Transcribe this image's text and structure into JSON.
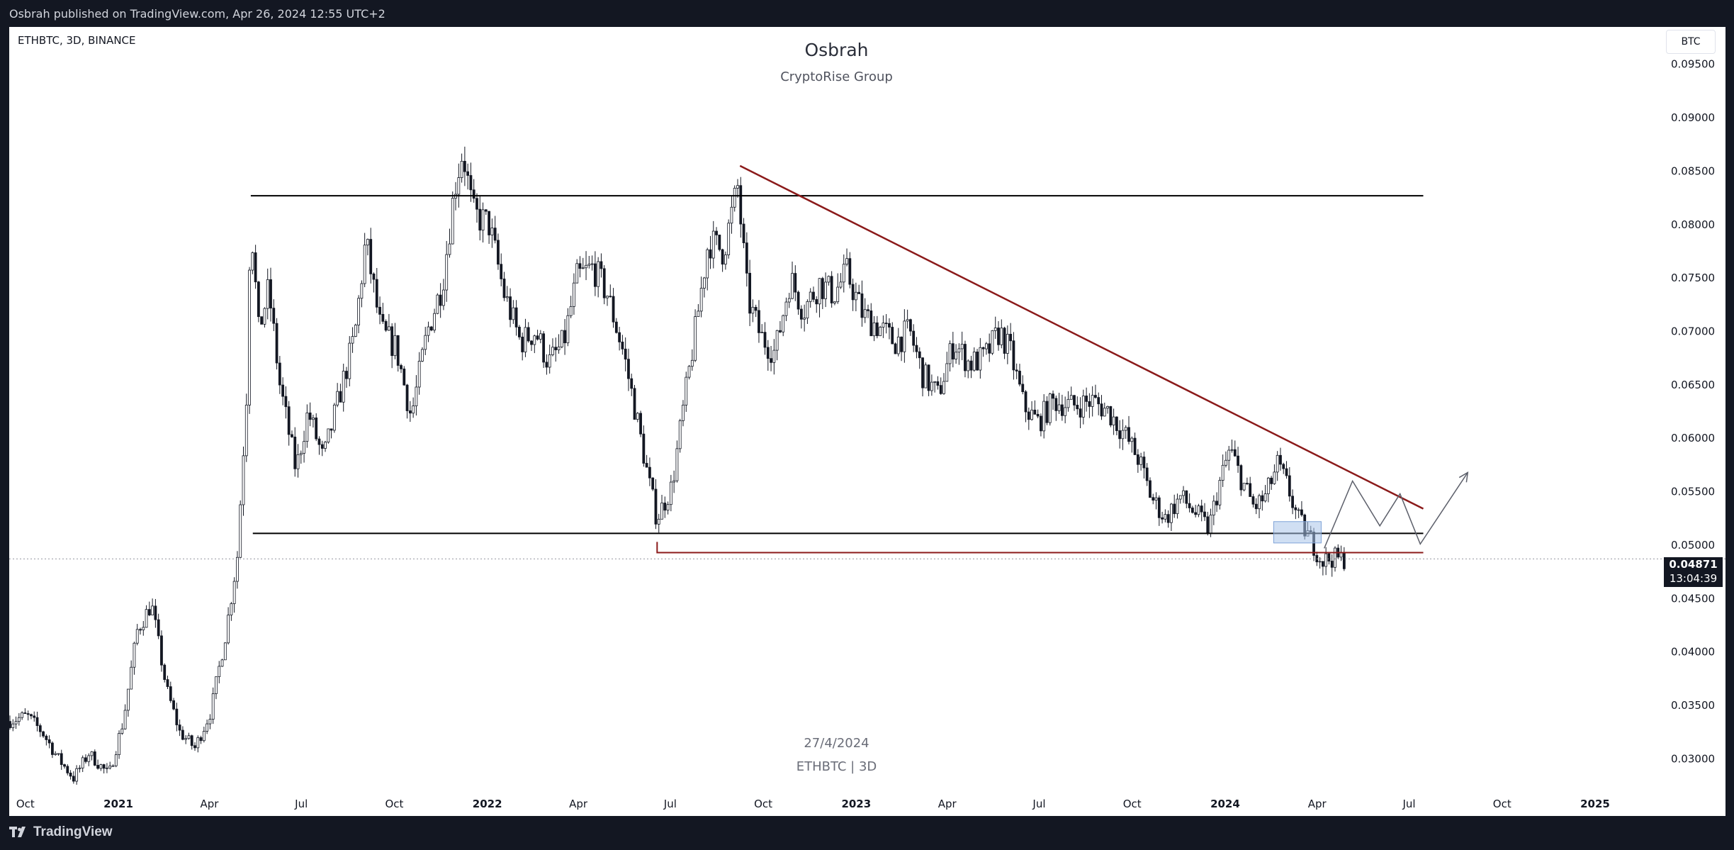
{
  "header": {
    "publish_line": "Osbrah published on TradingView.com, Apr 26, 2024 12:55 UTC+2"
  },
  "footer": {
    "brand": "TradingView"
  },
  "symbol_info": "ETHBTC, 3D, BINANCE",
  "currency_button": "BTC",
  "watermark": {
    "author": "Osbrah",
    "group": "CryptoRise Group",
    "date": "27/4/2024",
    "symbol_tf": "ETHBTC | 3D"
  },
  "last_price": {
    "value": "0.04871",
    "countdown": "13:04:39",
    "y": 0.04871
  },
  "colors": {
    "background": "#131722",
    "plot_bg": "#ffffff",
    "candles": "#131722",
    "support_resistance": "#000000",
    "trendline": "#8b1a1a",
    "zone": "#a9c4ea"
  },
  "chart_data": {
    "type": "candlestick",
    "timeframe": "3D",
    "ylim": [
      0.0275,
      0.0985
    ],
    "xlim": [
      "2020-09-15",
      "2025-03-10"
    ],
    "grid": false,
    "y_ticks": [
      "0.03000",
      "0.03500",
      "0.04000",
      "0.04500",
      "0.05000",
      "0.05500",
      "0.06000",
      "0.06500",
      "0.07000",
      "0.07500",
      "0.08000",
      "0.08500",
      "0.09000",
      "0.09500"
    ],
    "x_ticks": [
      {
        "label": "Oct",
        "date": "2020-10-01",
        "bold": false
      },
      {
        "label": "2021",
        "date": "2021-01-01",
        "bold": true
      },
      {
        "label": "Apr",
        "date": "2021-04-01",
        "bold": false
      },
      {
        "label": "Jul",
        "date": "2021-07-01",
        "bold": false
      },
      {
        "label": "Oct",
        "date": "2021-10-01",
        "bold": false
      },
      {
        "label": "2022",
        "date": "2022-01-01",
        "bold": true
      },
      {
        "label": "Apr",
        "date": "2022-04-01",
        "bold": false
      },
      {
        "label": "Jul",
        "date": "2022-07-01",
        "bold": false
      },
      {
        "label": "Oct",
        "date": "2022-10-01",
        "bold": false
      },
      {
        "label": "2023",
        "date": "2023-01-01",
        "bold": true
      },
      {
        "label": "Apr",
        "date": "2023-04-01",
        "bold": false
      },
      {
        "label": "Jul",
        "date": "2023-07-01",
        "bold": false
      },
      {
        "label": "Oct",
        "date": "2023-10-01",
        "bold": false
      },
      {
        "label": "2024",
        "date": "2024-01-01",
        "bold": true
      },
      {
        "label": "Apr",
        "date": "2024-04-01",
        "bold": false
      },
      {
        "label": "Jul",
        "date": "2024-07-01",
        "bold": false
      },
      {
        "label": "Oct",
        "date": "2024-10-01",
        "bold": false
      },
      {
        "label": "2025",
        "date": "2025-01-01",
        "bold": true
      }
    ],
    "price_path": [
      [
        "2020-09-15",
        0.0335
      ],
      [
        "2020-10-05",
        0.034
      ],
      [
        "2020-10-20",
        0.0325
      ],
      [
        "2020-11-05",
        0.03
      ],
      [
        "2020-11-20",
        0.0282
      ],
      [
        "2020-12-05",
        0.0305
      ],
      [
        "2020-12-25",
        0.0285
      ],
      [
        "2021-01-08",
        0.0335
      ],
      [
        "2021-01-22",
        0.042
      ],
      [
        "2021-02-05",
        0.0445
      ],
      [
        "2021-02-20",
        0.0365
      ],
      [
        "2021-03-05",
        0.0325
      ],
      [
        "2021-03-20",
        0.031
      ],
      [
        "2021-04-05",
        0.0345
      ],
      [
        "2021-04-20",
        0.042
      ],
      [
        "2021-05-01",
        0.049
      ],
      [
        "2021-05-10",
        0.064
      ],
      [
        "2021-05-14",
        0.0812
      ],
      [
        "2021-05-22",
        0.07
      ],
      [
        "2021-06-01",
        0.074
      ],
      [
        "2021-06-12",
        0.065
      ],
      [
        "2021-06-28",
        0.057
      ],
      [
        "2021-07-10",
        0.0625
      ],
      [
        "2021-07-25",
        0.058
      ],
      [
        "2021-08-10",
        0.064
      ],
      [
        "2021-08-25",
        0.0695
      ],
      [
        "2021-09-05",
        0.0785
      ],
      [
        "2021-09-20",
        0.07
      ],
      [
        "2021-10-05",
        0.0685
      ],
      [
        "2021-10-20",
        0.062
      ],
      [
        "2021-11-05",
        0.07
      ],
      [
        "2021-11-20",
        0.0745
      ],
      [
        "2021-12-02",
        0.0835
      ],
      [
        "2021-12-10",
        0.087
      ],
      [
        "2021-12-20",
        0.081
      ],
      [
        "2022-01-05",
        0.08
      ],
      [
        "2022-01-20",
        0.0735
      ],
      [
        "2022-02-05",
        0.069
      ],
      [
        "2022-02-20",
        0.07
      ],
      [
        "2022-03-05",
        0.067
      ],
      [
        "2022-03-20",
        0.069
      ],
      [
        "2022-04-02",
        0.075
      ],
      [
        "2022-04-18",
        0.076
      ],
      [
        "2022-05-02",
        0.0735
      ],
      [
        "2022-05-18",
        0.068
      ],
      [
        "2022-06-01",
        0.0615
      ],
      [
        "2022-06-12",
        0.056
      ],
      [
        "2022-06-20",
        0.0525
      ],
      [
        "2022-07-05",
        0.0555
      ],
      [
        "2022-07-15",
        0.062
      ],
      [
        "2022-07-28",
        0.07
      ],
      [
        "2022-08-10",
        0.0785
      ],
      [
        "2022-08-25",
        0.0775
      ],
      [
        "2022-09-08",
        0.0835
      ],
      [
        "2022-09-18",
        0.073
      ],
      [
        "2022-10-01",
        0.0695
      ],
      [
        "2022-10-15",
        0.068
      ],
      [
        "2022-10-30",
        0.075
      ],
      [
        "2022-11-12",
        0.072
      ],
      [
        "2022-11-28",
        0.0745
      ],
      [
        "2022-12-12",
        0.0735
      ],
      [
        "2022-12-25",
        0.0755
      ],
      [
        "2023-01-10",
        0.0715
      ],
      [
        "2023-01-25",
        0.0705
      ],
      [
        "2023-02-10",
        0.069
      ],
      [
        "2023-02-25",
        0.07
      ],
      [
        "2023-03-10",
        0.066
      ],
      [
        "2023-03-25",
        0.064
      ],
      [
        "2023-04-10",
        0.069
      ],
      [
        "2023-04-25",
        0.067
      ],
      [
        "2023-05-10",
        0.0675
      ],
      [
        "2023-05-25",
        0.07
      ],
      [
        "2023-06-05",
        0.068
      ],
      [
        "2023-06-18",
        0.063
      ],
      [
        "2023-07-02",
        0.0615
      ],
      [
        "2023-07-18",
        0.0635
      ],
      [
        "2023-08-05",
        0.063
      ],
      [
        "2023-08-25",
        0.0635
      ],
      [
        "2023-09-10",
        0.0625
      ],
      [
        "2023-09-25",
        0.0605
      ],
      [
        "2023-10-10",
        0.058
      ],
      [
        "2023-10-22",
        0.0545
      ],
      [
        "2023-11-05",
        0.0525
      ],
      [
        "2023-11-20",
        0.0545
      ],
      [
        "2023-12-05",
        0.053
      ],
      [
        "2023-12-18",
        0.0515
      ],
      [
        "2023-12-28",
        0.0555
      ],
      [
        "2024-01-08",
        0.059
      ],
      [
        "2024-01-20",
        0.056
      ],
      [
        "2024-02-01",
        0.0535
      ],
      [
        "2024-02-12",
        0.0545
      ],
      [
        "2024-02-24",
        0.0575
      ],
      [
        "2024-03-05",
        0.0555
      ],
      [
        "2024-03-15",
        0.0525
      ],
      [
        "2024-03-28",
        0.0505
      ],
      [
        "2024-04-08",
        0.0485
      ],
      [
        "2024-04-18",
        0.0488
      ],
      [
        "2024-04-26",
        0.0487
      ]
    ],
    "drawings": {
      "resistance": {
        "start": [
          "2021-05-12",
          0.0827
        ],
        "end": [
          "2024-07-15",
          0.0827
        ]
      },
      "support": {
        "start": [
          "2021-05-14",
          0.0511
        ],
        "end": [
          "2024-07-15",
          0.0511
        ]
      },
      "lower_support": {
        "start": [
          "2022-06-18",
          0.0493
        ],
        "end": [
          "2024-07-15",
          0.0493
        ]
      },
      "descending_trendline": {
        "start": [
          "2022-09-08",
          0.0855
        ],
        "end": [
          "2024-07-15",
          0.0534
        ]
      },
      "demand_zone": {
        "start": [
          "2024-02-18",
          0.0502
        ],
        "end": [
          "2024-04-05",
          0.0522
        ]
      },
      "projection": [
        [
          "2024-04-08",
          0.0497
        ],
        [
          "2024-05-06",
          0.056
        ],
        [
          "2024-06-02",
          0.0518
        ],
        [
          "2024-06-22",
          0.0548
        ],
        [
          "2024-07-12",
          0.0501
        ],
        [
          "2024-08-28",
          0.0568
        ]
      ]
    }
  }
}
